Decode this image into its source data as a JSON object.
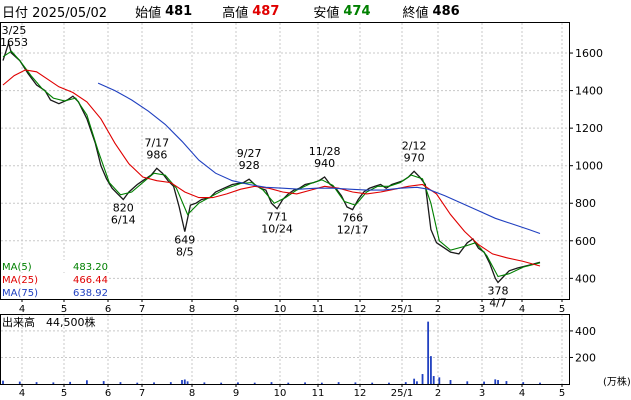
{
  "header": {
    "date_label": "日付 2025/05/02",
    "open_label": "始値",
    "open_value": "481",
    "high_label": "高値",
    "high_value": "487",
    "low_label": "安値",
    "low_value": "474",
    "close_label": "終値",
    "close_value": "486",
    "colors": {
      "high": "#e00000",
      "low": "#008000",
      "text": "#000000"
    }
  },
  "chart_data": [
    {
      "type": "line",
      "title": "",
      "y_ticks": [
        400,
        600,
        800,
        1000,
        1200,
        1400,
        1600
      ],
      "ylim": [
        290,
        1760
      ],
      "x_ticks": [
        "4",
        "5",
        "6",
        "7",
        "8",
        "9",
        "10",
        "11",
        "12",
        "25/1",
        "2",
        "3",
        "4",
        "5"
      ],
      "grid": true,
      "series": [
        {
          "name": "Price",
          "color": "#1a1a1a",
          "points": [
            [
              0,
              1560
            ],
            [
              2,
              1653
            ],
            [
              3,
              1600
            ],
            [
              6,
              1560
            ],
            [
              9,
              1490
            ],
            [
              12,
              1430
            ],
            [
              15,
              1400
            ],
            [
              17,
              1350
            ],
            [
              20,
              1330
            ],
            [
              23,
              1350
            ],
            [
              25,
              1370
            ],
            [
              27,
              1340
            ],
            [
              30,
              1250
            ],
            [
              33,
              1120
            ],
            [
              35,
              1000
            ],
            [
              37,
              930
            ],
            [
              39,
              880
            ],
            [
              41,
              850
            ],
            [
              43,
              820
            ],
            [
              45,
              860
            ],
            [
              48,
              900
            ],
            [
              50,
              920
            ],
            [
              53,
              950
            ],
            [
              55,
              986
            ],
            [
              57,
              960
            ],
            [
              59,
              920
            ],
            [
              61,
              890
            ],
            [
              63,
              780
            ],
            [
              65,
              649
            ],
            [
              67,
              790
            ],
            [
              69,
              800
            ],
            [
              71,
              820
            ],
            [
              74,
              830
            ],
            [
              76,
              860
            ],
            [
              79,
              880
            ],
            [
              82,
              900
            ],
            [
              84,
              905
            ],
            [
              86,
              910
            ],
            [
              88,
              928
            ],
            [
              90,
              900
            ],
            [
              92,
              880
            ],
            [
              94,
              870
            ],
            [
              96,
              800
            ],
            [
              98,
              771
            ],
            [
              100,
              820
            ],
            [
              102,
              850
            ],
            [
              104,
              870
            ],
            [
              106,
              880
            ],
            [
              108,
              900
            ],
            [
              111,
              910
            ],
            [
              113,
              920
            ],
            [
              115,
              940
            ],
            [
              117,
              900
            ],
            [
              119,
              880
            ],
            [
              121,
              840
            ],
            [
              123,
              780
            ],
            [
              125,
              766
            ],
            [
              127,
              820
            ],
            [
              129,
              860
            ],
            [
              131,
              880
            ],
            [
              133,
              890
            ],
            [
              135,
              900
            ],
            [
              137,
              880
            ],
            [
              139,
              900
            ],
            [
              141,
              910
            ],
            [
              143,
              920
            ],
            [
              145,
              940
            ],
            [
              147,
              970
            ],
            [
              149,
              940
            ],
            [
              151,
              900
            ],
            [
              153,
              660
            ],
            [
              155,
              590
            ],
            [
              157,
              570
            ],
            [
              160,
              540
            ],
            [
              163,
              530
            ],
            [
              166,
              590
            ],
            [
              168,
              610
            ],
            [
              170,
              560
            ],
            [
              172,
              540
            ],
            [
              174,
              480
            ],
            [
              176,
              400
            ],
            [
              177,
              378
            ],
            [
              179,
              410
            ],
            [
              181,
              440
            ],
            [
              184,
              455
            ],
            [
              188,
              470
            ],
            [
              192,
              486
            ]
          ]
        },
        {
          "name": "MA(5)",
          "color": "#008000",
          "points": [
            [
              0,
              1580
            ],
            [
              3,
              1610
            ],
            [
              6,
              1560
            ],
            [
              10,
              1480
            ],
            [
              14,
              1410
            ],
            [
              18,
              1360
            ],
            [
              22,
              1345
            ],
            [
              26,
              1360
            ],
            [
              30,
              1270
            ],
            [
              34,
              1080
            ],
            [
              38,
              910
            ],
            [
              42,
              845
            ],
            [
              46,
              860
            ],
            [
              50,
              910
            ],
            [
              54,
              960
            ],
            [
              58,
              950
            ],
            [
              62,
              880
            ],
            [
              66,
              740
            ],
            [
              70,
              800
            ],
            [
              75,
              840
            ],
            [
              80,
              880
            ],
            [
              85,
              905
            ],
            [
              89,
              910
            ],
            [
              93,
              870
            ],
            [
              97,
              800
            ],
            [
              101,
              830
            ],
            [
              105,
              870
            ],
            [
              110,
              905
            ],
            [
              114,
              925
            ],
            [
              118,
              895
            ],
            [
              122,
              810
            ],
            [
              126,
              790
            ],
            [
              130,
              860
            ],
            [
              134,
              890
            ],
            [
              138,
              890
            ],
            [
              142,
              910
            ],
            [
              146,
              950
            ],
            [
              150,
              930
            ],
            [
              153,
              800
            ],
            [
              156,
              600
            ],
            [
              160,
              550
            ],
            [
              165,
              570
            ],
            [
              169,
              590
            ],
            [
              173,
              520
            ],
            [
              177,
              410
            ],
            [
              181,
              425
            ],
            [
              186,
              460
            ],
            [
              192,
              483
            ]
          ]
        },
        {
          "name": "MA(25)",
          "color": "#e00000",
          "points": [
            [
              0,
              1430
            ],
            [
              4,
              1480
            ],
            [
              8,
              1510
            ],
            [
              12,
              1500
            ],
            [
              16,
              1460
            ],
            [
              20,
              1420
            ],
            [
              25,
              1390
            ],
            [
              30,
              1340
            ],
            [
              35,
              1250
            ],
            [
              40,
              1120
            ],
            [
              45,
              1010
            ],
            [
              50,
              940
            ],
            [
              55,
              920
            ],
            [
              60,
              910
            ],
            [
              65,
              860
            ],
            [
              70,
              830
            ],
            [
              75,
              830
            ],
            [
              80,
              850
            ],
            [
              85,
              875
            ],
            [
              90,
              890
            ],
            [
              95,
              880
            ],
            [
              100,
              860
            ],
            [
              105,
              850
            ],
            [
              110,
              870
            ],
            [
              115,
              890
            ],
            [
              120,
              880
            ],
            [
              125,
              860
            ],
            [
              130,
              850
            ],
            [
              135,
              860
            ],
            [
              140,
              875
            ],
            [
              145,
              890
            ],
            [
              150,
              900
            ],
            [
              155,
              850
            ],
            [
              160,
              740
            ],
            [
              165,
              650
            ],
            [
              170,
              580
            ],
            [
              175,
              530
            ],
            [
              180,
              510
            ],
            [
              186,
              490
            ],
            [
              192,
              466
            ]
          ]
        },
        {
          "name": "MA(75)",
          "color": "#2040c0",
          "points": [
            [
              34,
              1440
            ],
            [
              40,
              1400
            ],
            [
              46,
              1350
            ],
            [
              52,
              1290
            ],
            [
              58,
              1220
            ],
            [
              64,
              1130
            ],
            [
              70,
              1030
            ],
            [
              76,
              960
            ],
            [
              82,
              920
            ],
            [
              88,
              900
            ],
            [
              94,
              885
            ],
            [
              100,
              880
            ],
            [
              106,
              875
            ],
            [
              112,
              880
            ],
            [
              118,
              880
            ],
            [
              124,
              875
            ],
            [
              130,
              870
            ],
            [
              136,
              870
            ],
            [
              142,
              880
            ],
            [
              148,
              885
            ],
            [
              152,
              875
            ],
            [
              158,
              840
            ],
            [
              164,
              800
            ],
            [
              170,
              760
            ],
            [
              176,
              720
            ],
            [
              182,
              690
            ],
            [
              188,
              660
            ],
            [
              192,
              639
            ]
          ]
        }
      ],
      "annotations": [
        {
          "text": [
            "3/25",
            "1653"
          ],
          "at": [
            2,
            1653
          ],
          "side": "above"
        },
        {
          "text": [
            "820",
            "6/14"
          ],
          "at": [
            43,
            820
          ],
          "side": "below"
        },
        {
          "text": [
            "7/17",
            "986"
          ],
          "at": [
            55,
            986
          ],
          "side": "above"
        },
        {
          "text": [
            "649",
            "8/5"
          ],
          "at": [
            65,
            649
          ],
          "side": "below"
        },
        {
          "text": [
            "9/27",
            "928"
          ],
          "at": [
            88,
            928
          ],
          "side": "above"
        },
        {
          "text": [
            "771",
            "10/24"
          ],
          "at": [
            98,
            771
          ],
          "side": "below"
        },
        {
          "text": [
            "11/28",
            "940"
          ],
          "at": [
            115,
            940
          ],
          "side": "above"
        },
        {
          "text": [
            "766",
            "12/17"
          ],
          "at": [
            125,
            766
          ],
          "side": "below"
        },
        {
          "text": [
            "2/12",
            "970"
          ],
          "at": [
            147,
            970
          ],
          "side": "above"
        },
        {
          "text": [
            "378",
            "4/7"
          ],
          "at": [
            177,
            378
          ],
          "side": "below"
        }
      ],
      "ma_labels": [
        {
          "name": "MA(5)",
          "value": "483.20",
          "color": "#008000"
        },
        {
          "name": "MA(25)",
          "value": "466.44",
          "color": "#e00000"
        },
        {
          "name": "MA(75)",
          "value": "638.92",
          "color": "#2040c0"
        }
      ]
    },
    {
      "type": "bar",
      "title": "出来高　44,500株",
      "unit_label": "(万株)",
      "y_ticks": [
        200,
        400
      ],
      "ylim": [
        0,
        520
      ],
      "x_ticks": [
        "4",
        "5",
        "6",
        "7",
        "8",
        "9",
        "10",
        "11",
        "12",
        "25/1",
        "2",
        "3",
        "4",
        "5"
      ],
      "color": "#2040c0",
      "volume_index": [
        0,
        6,
        12,
        18,
        24,
        30,
        36,
        42,
        48,
        54,
        60,
        64,
        65,
        66,
        72,
        78,
        84,
        90,
        96,
        102,
        108,
        114,
        120,
        126,
        132,
        138,
        144,
        147,
        148,
        150,
        152,
        153,
        154,
        156,
        160,
        166,
        172,
        176,
        177,
        180,
        186,
        192
      ],
      "volume_values": [
        25,
        18,
        14,
        12,
        16,
        28,
        22,
        14,
        10,
        12,
        14,
        30,
        34,
        20,
        12,
        10,
        12,
        10,
        14,
        10,
        12,
        10,
        14,
        12,
        10,
        10,
        14,
        40,
        20,
        75,
        470,
        210,
        60,
        50,
        30,
        20,
        18,
        35,
        30,
        22,
        14,
        10
      ]
    }
  ]
}
